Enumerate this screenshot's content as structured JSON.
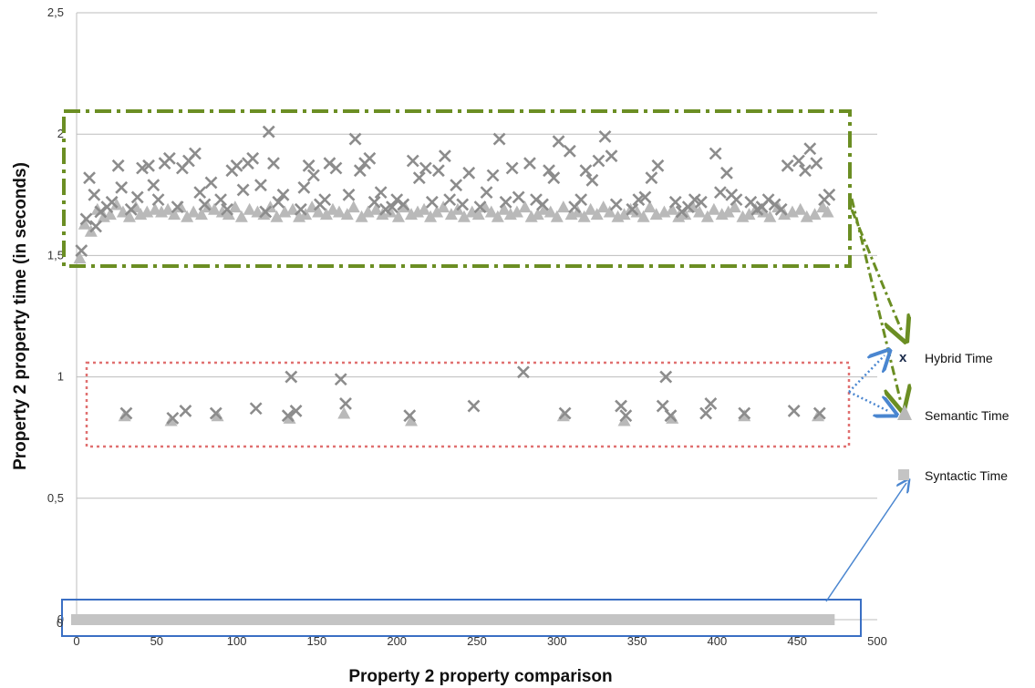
{
  "chart_data": {
    "type": "scatter",
    "title": "",
    "xlabel": "Property 2 property comparison",
    "ylabel": "Property 2 property time (in seconds)",
    "xlim": [
      0,
      500
    ],
    "ylim": [
      0,
      2.5
    ],
    "x_ticks": [
      "0",
      "50",
      "100",
      "150",
      "200",
      "250",
      "300",
      "350",
      "400",
      "450",
      "500"
    ],
    "y_ticks": [
      "0",
      "0,5",
      "1",
      "1,5",
      "2",
      "2,5"
    ],
    "grid": "horizontal",
    "legend_position": "right",
    "colors": {
      "hybrid_marker": "#8c8c8c",
      "semantic_marker": "#b9b9b9",
      "syntactic_marker": "#c4c4c4",
      "green_box": "#6b8e23",
      "red_box": "#e07070",
      "blue_box": "#3a6fc4",
      "blue_arrow": "#4a86d0"
    },
    "series": [
      {
        "name": "Hybrid Time",
        "marker": "x",
        "points": [
          [
            3,
            1.52
          ],
          [
            6,
            1.65
          ],
          [
            8,
            1.82
          ],
          [
            11,
            1.75
          ],
          [
            12,
            1.62
          ],
          [
            15,
            1.68
          ],
          [
            19,
            1.7
          ],
          [
            22,
            1.72
          ],
          [
            26,
            1.87
          ],
          [
            28,
            1.78
          ],
          [
            31,
            0.85
          ],
          [
            34,
            1.69
          ],
          [
            38,
            1.74
          ],
          [
            41,
            1.86
          ],
          [
            45,
            1.87
          ],
          [
            48,
            1.79
          ],
          [
            51,
            1.73
          ],
          [
            55,
            1.88
          ],
          [
            58,
            1.9
          ],
          [
            60,
            0.83
          ],
          [
            63,
            1.7
          ],
          [
            66,
            1.86
          ],
          [
            68,
            0.86
          ],
          [
            70,
            1.89
          ],
          [
            74,
            1.92
          ],
          [
            77,
            1.76
          ],
          [
            80,
            1.71
          ],
          [
            84,
            1.8
          ],
          [
            87,
            0.85
          ],
          [
            90,
            1.73
          ],
          [
            94,
            1.69
          ],
          [
            97,
            1.85
          ],
          [
            100,
            1.87
          ],
          [
            104,
            1.77
          ],
          [
            107,
            1.88
          ],
          [
            110,
            1.9
          ],
          [
            112,
            0.87
          ],
          [
            115,
            1.79
          ],
          [
            118,
            1.68
          ],
          [
            120,
            2.01
          ],
          [
            123,
            1.88
          ],
          [
            126,
            1.72
          ],
          [
            129,
            1.75
          ],
          [
            132,
            0.84
          ],
          [
            134,
            1.0
          ],
          [
            137,
            0.86
          ],
          [
            140,
            1.69
          ],
          [
            142,
            1.78
          ],
          [
            145,
            1.87
          ],
          [
            148,
            1.83
          ],
          [
            152,
            1.71
          ],
          [
            155,
            1.73
          ],
          [
            158,
            1.88
          ],
          [
            162,
            1.86
          ],
          [
            165,
            0.99
          ],
          [
            168,
            0.89
          ],
          [
            170,
            1.75
          ],
          [
            174,
            1.98
          ],
          [
            177,
            1.85
          ],
          [
            180,
            1.88
          ],
          [
            183,
            1.9
          ],
          [
            186,
            1.72
          ],
          [
            190,
            1.76
          ],
          [
            193,
            1.69
          ],
          [
            197,
            1.7
          ],
          [
            200,
            1.73
          ],
          [
            204,
            1.71
          ],
          [
            208,
            0.84
          ],
          [
            210,
            1.89
          ],
          [
            214,
            1.82
          ],
          [
            218,
            1.86
          ],
          [
            222,
            1.72
          ],
          [
            226,
            1.85
          ],
          [
            230,
            1.91
          ],
          [
            233,
            1.73
          ],
          [
            237,
            1.79
          ],
          [
            241,
            1.71
          ],
          [
            245,
            1.84
          ],
          [
            248,
            0.88
          ],
          [
            252,
            1.7
          ],
          [
            256,
            1.76
          ],
          [
            260,
            1.83
          ],
          [
            264,
            1.98
          ],
          [
            268,
            1.72
          ],
          [
            272,
            1.86
          ],
          [
            276,
            1.74
          ],
          [
            279,
            1.02
          ],
          [
            283,
            1.88
          ],
          [
            287,
            1.73
          ],
          [
            291,
            1.71
          ],
          [
            295,
            1.85
          ],
          [
            298,
            1.82
          ],
          [
            301,
            1.97
          ],
          [
            305,
            0.85
          ],
          [
            308,
            1.93
          ],
          [
            311,
            1.7
          ],
          [
            315,
            1.73
          ],
          [
            318,
            1.85
          ],
          [
            322,
            1.81
          ],
          [
            326,
            1.89
          ],
          [
            330,
            1.99
          ],
          [
            334,
            1.91
          ],
          [
            337,
            1.71
          ],
          [
            340,
            0.88
          ],
          [
            343,
            0.84
          ],
          [
            347,
            1.69
          ],
          [
            351,
            1.73
          ],
          [
            355,
            1.74
          ],
          [
            359,
            1.82
          ],
          [
            363,
            1.87
          ],
          [
            366,
            0.88
          ],
          [
            368,
            1.0
          ],
          [
            371,
            0.84
          ],
          [
            374,
            1.72
          ],
          [
            378,
            1.68
          ],
          [
            382,
            1.7
          ],
          [
            386,
            1.73
          ],
          [
            390,
            1.72
          ],
          [
            393,
            0.85
          ],
          [
            396,
            0.89
          ],
          [
            399,
            1.92
          ],
          [
            402,
            1.76
          ],
          [
            406,
            1.84
          ],
          [
            409,
            1.75
          ],
          [
            412,
            1.73
          ],
          [
            417,
            0.85
          ],
          [
            421,
            1.72
          ],
          [
            425,
            1.69
          ],
          [
            428,
            1.7
          ],
          [
            432,
            1.73
          ],
          [
            436,
            1.71
          ],
          [
            440,
            1.69
          ],
          [
            444,
            1.87
          ],
          [
            448,
            0.86
          ],
          [
            451,
            1.89
          ],
          [
            455,
            1.85
          ],
          [
            458,
            1.94
          ],
          [
            462,
            1.88
          ],
          [
            464,
            0.85
          ],
          [
            467,
            1.73
          ],
          [
            470,
            1.75
          ]
        ]
      },
      {
        "name": "Semantic Time",
        "marker": "triangle",
        "points": [
          [
            2,
            1.49
          ],
          [
            5,
            1.63
          ],
          [
            9,
            1.6
          ],
          [
            13,
            1.69
          ],
          [
            17,
            1.66
          ],
          [
            21,
            1.67
          ],
          [
            25,
            1.71
          ],
          [
            29,
            1.68
          ],
          [
            33,
            1.66
          ],
          [
            37,
            1.7
          ],
          [
            40,
            1.67
          ],
          [
            44,
            1.68
          ],
          [
            49,
            1.69
          ],
          [
            53,
            1.68
          ],
          [
            57,
            1.69
          ],
          [
            61,
            1.67
          ],
          [
            65,
            1.7
          ],
          [
            69,
            1.66
          ],
          [
            73,
            1.68
          ],
          [
            78,
            1.67
          ],
          [
            82,
            1.7
          ],
          [
            86,
            1.69
          ],
          [
            91,
            1.68
          ],
          [
            95,
            1.67
          ],
          [
            99,
            1.7
          ],
          [
            103,
            1.66
          ],
          [
            108,
            1.69
          ],
          [
            113,
            1.68
          ],
          [
            117,
            1.67
          ],
          [
            121,
            1.7
          ],
          [
            125,
            1.66
          ],
          [
            130,
            1.68
          ],
          [
            135,
            1.69
          ],
          [
            139,
            1.66
          ],
          [
            143,
            1.67
          ],
          [
            147,
            1.7
          ],
          [
            151,
            1.68
          ],
          [
            156,
            1.67
          ],
          [
            160,
            1.69
          ],
          [
            164,
            1.68
          ],
          [
            169,
            1.67
          ],
          [
            173,
            1.7
          ],
          [
            178,
            1.66
          ],
          [
            182,
            1.68
          ],
          [
            187,
            1.69
          ],
          [
            191,
            1.67
          ],
          [
            196,
            1.68
          ],
          [
            201,
            1.66
          ],
          [
            205,
            1.7
          ],
          [
            209,
            1.67
          ],
          [
            213,
            1.68
          ],
          [
            217,
            1.69
          ],
          [
            221,
            1.66
          ],
          [
            225,
            1.68
          ],
          [
            229,
            1.7
          ],
          [
            234,
            1.67
          ],
          [
            238,
            1.69
          ],
          [
            242,
            1.66
          ],
          [
            247,
            1.68
          ],
          [
            251,
            1.67
          ],
          [
            255,
            1.7
          ],
          [
            259,
            1.68
          ],
          [
            263,
            1.66
          ],
          [
            267,
            1.69
          ],
          [
            271,
            1.67
          ],
          [
            275,
            1.68
          ],
          [
            280,
            1.7
          ],
          [
            284,
            1.66
          ],
          [
            288,
            1.67
          ],
          [
            292,
            1.69
          ],
          [
            296,
            1.68
          ],
          [
            300,
            1.66
          ],
          [
            304,
            1.7
          ],
          [
            309,
            1.67
          ],
          [
            313,
            1.68
          ],
          [
            317,
            1.66
          ],
          [
            321,
            1.69
          ],
          [
            325,
            1.67
          ],
          [
            329,
            1.7
          ],
          [
            333,
            1.68
          ],
          [
            338,
            1.66
          ],
          [
            342,
            1.67
          ],
          [
            346,
            1.69
          ],
          [
            350,
            1.68
          ],
          [
            354,
            1.66
          ],
          [
            358,
            1.7
          ],
          [
            362,
            1.67
          ],
          [
            367,
            1.68
          ],
          [
            372,
            1.69
          ],
          [
            376,
            1.66
          ],
          [
            380,
            1.67
          ],
          [
            385,
            1.7
          ],
          [
            389,
            1.68
          ],
          [
            394,
            1.66
          ],
          [
            398,
            1.69
          ],
          [
            403,
            1.67
          ],
          [
            407,
            1.68
          ],
          [
            411,
            1.7
          ],
          [
            416,
            1.66
          ],
          [
            420,
            1.67
          ],
          [
            424,
            1.69
          ],
          [
            429,
            1.68
          ],
          [
            433,
            1.66
          ],
          [
            438,
            1.7
          ],
          [
            442,
            1.67
          ],
          [
            447,
            1.68
          ],
          [
            452,
            1.69
          ],
          [
            456,
            1.66
          ],
          [
            461,
            1.67
          ],
          [
            466,
            1.7
          ],
          [
            469,
            1.68
          ],
          [
            30,
            0.84
          ],
          [
            59,
            0.82
          ],
          [
            88,
            0.84
          ],
          [
            133,
            0.83
          ],
          [
            167,
            0.85
          ],
          [
            209,
            0.82
          ],
          [
            304,
            0.84
          ],
          [
            342,
            0.82
          ],
          [
            372,
            0.83
          ],
          [
            417,
            0.84
          ],
          [
            463,
            0.84
          ]
        ]
      },
      {
        "name": "Syntactic Time",
        "marker": "square",
        "x_range": [
          0,
          470
        ],
        "y": 0
      }
    ],
    "annotations": [
      "0"
    ]
  }
}
